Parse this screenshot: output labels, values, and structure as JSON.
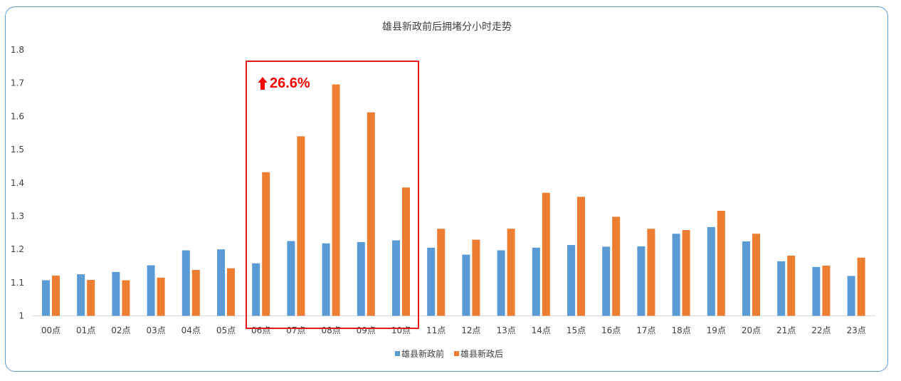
{
  "chart_data": {
    "type": "bar",
    "title": "雄县新政前后拥堵分小时走势",
    "categories": [
      "00点",
      "01点",
      "02点",
      "03点",
      "04点",
      "05点",
      "06点",
      "07点",
      "08点",
      "09点",
      "10点",
      "11点",
      "12点",
      "13点",
      "14点",
      "15点",
      "16点",
      "17点",
      "18点",
      "19点",
      "20点",
      "21点",
      "22点",
      "23点"
    ],
    "series": [
      {
        "name": "雄县新政前",
        "color": "#5b9bd5",
        "values": [
          1.107,
          1.125,
          1.132,
          1.152,
          1.197,
          1.2,
          1.158,
          1.225,
          1.218,
          1.222,
          1.227,
          1.205,
          1.184,
          1.197,
          1.205,
          1.213,
          1.208,
          1.209,
          1.247,
          1.267,
          1.224,
          1.164,
          1.147,
          1.12
        ]
      },
      {
        "name": "雄县新政后",
        "color": "#ed7d31",
        "values": [
          1.121,
          1.108,
          1.107,
          1.115,
          1.138,
          1.143,
          1.432,
          1.54,
          1.696,
          1.612,
          1.386,
          1.262,
          1.229,
          1.262,
          1.37,
          1.358,
          1.298,
          1.262,
          1.258,
          1.316,
          1.247,
          1.181,
          1.151,
          1.175
        ]
      }
    ],
    "yticks": [
      "1",
      "1.1",
      "1.2",
      "1.3",
      "1.4",
      "1.5",
      "1.6",
      "1.7",
      "1.8"
    ],
    "ylim": [
      1,
      1.8
    ],
    "legend_position": "bottom",
    "grid": false,
    "annotation": {
      "text": "26.6%",
      "color": "#ff0000",
      "highlight_categories": [
        "06点",
        "10点"
      ]
    }
  }
}
